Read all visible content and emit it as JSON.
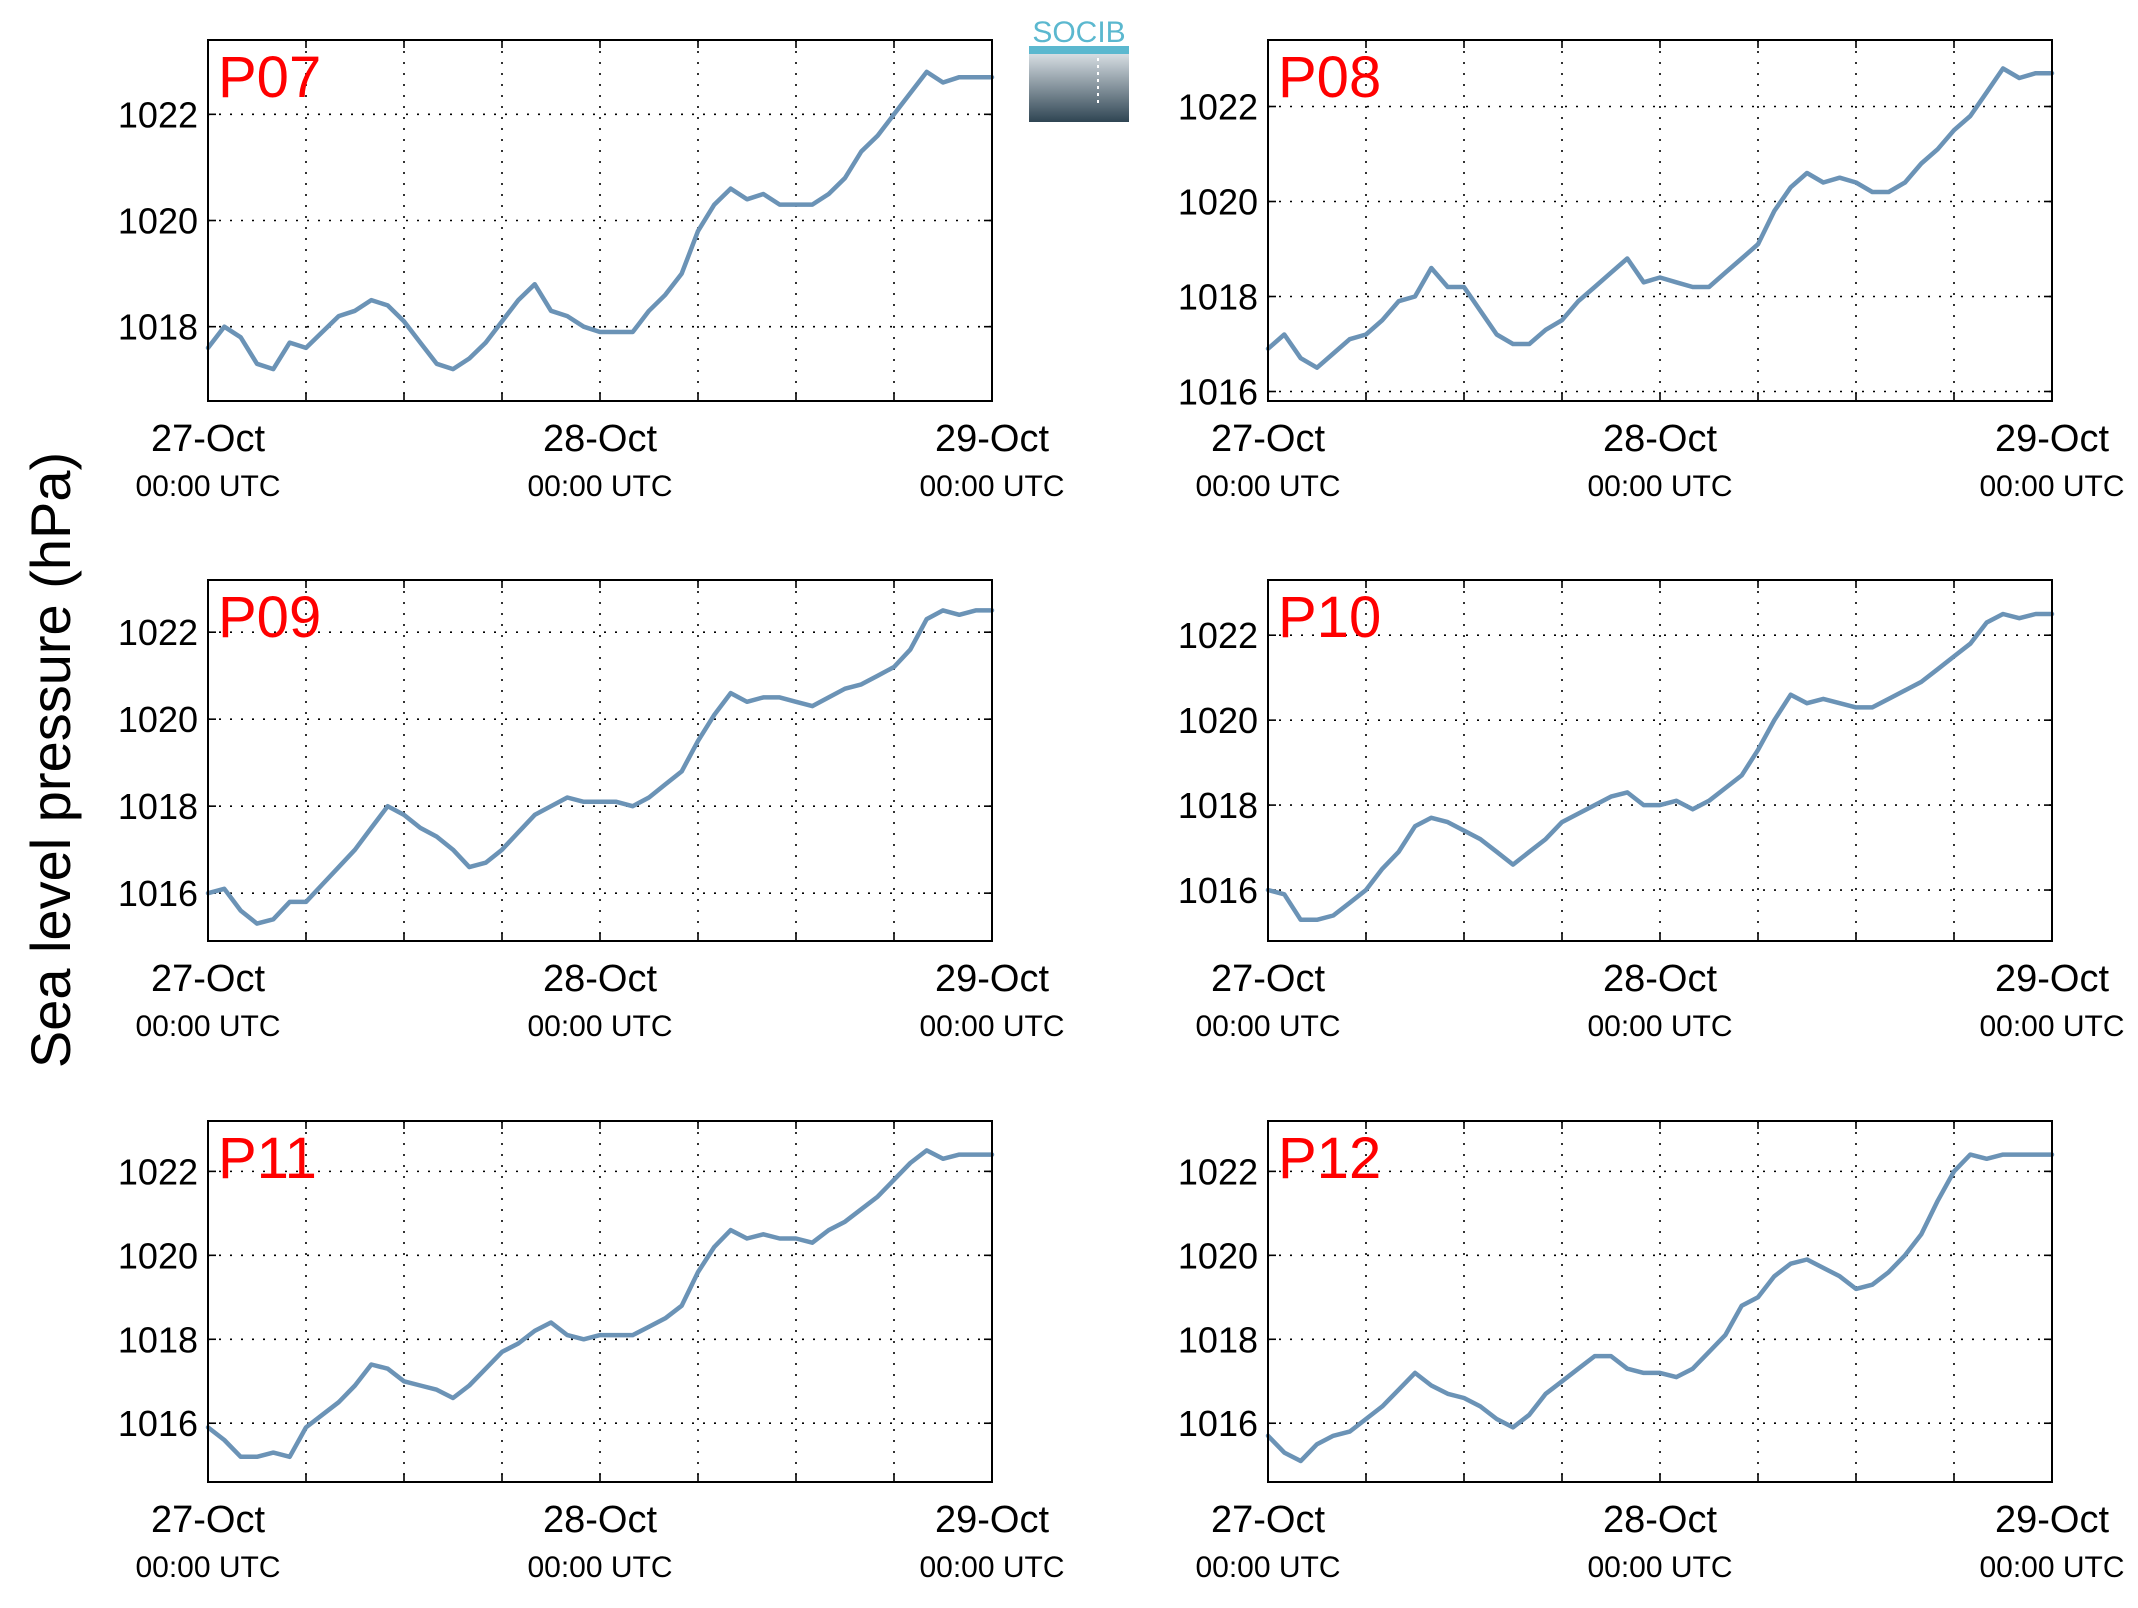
{
  "figure": {
    "ylabel": "Sea level pressure (hPa)",
    "logo_text": "SOCIB",
    "colors": {
      "line": "#6b93b6",
      "title": "#ff0000",
      "logo_text": "#5bb8cf",
      "logo_top": "#d6dde2",
      "logo_bottom": "#2f4553",
      "grid": "#000000"
    }
  },
  "chart_data": [
    {
      "type": "line",
      "title": "P07",
      "xlim": [
        0,
        48
      ],
      "x_ticks": [
        {
          "x": 0,
          "date": "27-Oct",
          "time": "00:00 UTC"
        },
        {
          "x": 24,
          "date": "28-Oct",
          "time": "00:00 UTC"
        },
        {
          "x": 48,
          "date": "29-Oct",
          "time": "00:00 UTC"
        }
      ],
      "x_minor_grid": [
        6,
        12,
        18,
        30,
        36,
        42
      ],
      "ylim": [
        1016.6,
        1023.4
      ],
      "y_ticks": [
        1018,
        1020,
        1022
      ],
      "x": [
        0,
        1,
        2,
        3,
        4,
        5,
        6,
        7,
        8,
        9,
        10,
        11,
        12,
        13,
        14,
        15,
        16,
        17,
        18,
        19,
        20,
        21,
        22,
        23,
        24,
        25,
        26,
        27,
        28,
        29,
        30,
        31,
        32,
        33,
        34,
        35,
        36,
        37,
        38,
        39,
        40,
        41,
        42,
        43,
        44,
        45,
        46,
        47,
        48
      ],
      "values": [
        1017.6,
        1018.0,
        1017.8,
        1017.3,
        1017.2,
        1017.7,
        1017.6,
        1017.9,
        1018.2,
        1018.3,
        1018.5,
        1018.4,
        1018.1,
        1017.7,
        1017.3,
        1017.2,
        1017.4,
        1017.7,
        1018.1,
        1018.5,
        1018.8,
        1018.3,
        1018.2,
        1018.0,
        1017.9,
        1017.9,
        1017.9,
        1018.3,
        1018.6,
        1019.0,
        1019.8,
        1020.3,
        1020.6,
        1020.4,
        1020.5,
        1020.3,
        1020.3,
        1020.3,
        1020.5,
        1020.8,
        1021.3,
        1021.6,
        1022.0,
        1022.4,
        1022.8,
        1022.6,
        1022.7,
        1022.7,
        1022.7
      ]
    },
    {
      "type": "line",
      "title": "P08",
      "xlim": [
        0,
        48
      ],
      "x_ticks": [
        {
          "x": 0,
          "date": "27-Oct",
          "time": "00:00 UTC"
        },
        {
          "x": 24,
          "date": "28-Oct",
          "time": "00:00 UTC"
        },
        {
          "x": 48,
          "date": "29-Oct",
          "time": "00:00 UTC"
        }
      ],
      "x_minor_grid": [
        6,
        12,
        18,
        30,
        36,
        42
      ],
      "ylim": [
        1015.8,
        1023.4
      ],
      "y_ticks": [
        1016,
        1018,
        1020,
        1022
      ],
      "x": [
        0,
        1,
        2,
        3,
        4,
        5,
        6,
        7,
        8,
        9,
        10,
        11,
        12,
        13,
        14,
        15,
        16,
        17,
        18,
        19,
        20,
        21,
        22,
        23,
        24,
        25,
        26,
        27,
        28,
        29,
        30,
        31,
        32,
        33,
        34,
        35,
        36,
        37,
        38,
        39,
        40,
        41,
        42,
        43,
        44,
        45,
        46,
        47,
        48
      ],
      "values": [
        1016.9,
        1017.2,
        1016.7,
        1016.5,
        1016.8,
        1017.1,
        1017.2,
        1017.5,
        1017.9,
        1018.0,
        1018.6,
        1018.2,
        1018.2,
        1017.7,
        1017.2,
        1017.0,
        1017.0,
        1017.3,
        1017.5,
        1017.9,
        1018.2,
        1018.5,
        1018.8,
        1018.3,
        1018.4,
        1018.3,
        1018.2,
        1018.2,
        1018.5,
        1018.8,
        1019.1,
        1019.8,
        1020.3,
        1020.6,
        1020.4,
        1020.5,
        1020.4,
        1020.2,
        1020.2,
        1020.4,
        1020.8,
        1021.1,
        1021.5,
        1021.8,
        1022.3,
        1022.8,
        1022.6,
        1022.7,
        1022.7
      ]
    },
    {
      "type": "line",
      "title": "P09",
      "xlim": [
        0,
        48
      ],
      "x_ticks": [
        {
          "x": 0,
          "date": "27-Oct",
          "time": "00:00 UTC"
        },
        {
          "x": 24,
          "date": "28-Oct",
          "time": "00:00 UTC"
        },
        {
          "x": 48,
          "date": "29-Oct",
          "time": "00:00 UTC"
        }
      ],
      "x_minor_grid": [
        6,
        12,
        18,
        30,
        36,
        42
      ],
      "ylim": [
        1014.9,
        1023.2
      ],
      "y_ticks": [
        1016,
        1018,
        1020,
        1022
      ],
      "x": [
        0,
        1,
        2,
        3,
        4,
        5,
        6,
        7,
        8,
        9,
        10,
        11,
        12,
        13,
        14,
        15,
        16,
        17,
        18,
        19,
        20,
        21,
        22,
        23,
        24,
        25,
        26,
        27,
        28,
        29,
        30,
        31,
        32,
        33,
        34,
        35,
        36,
        37,
        38,
        39,
        40,
        41,
        42,
        43,
        44,
        45,
        46,
        47,
        48
      ],
      "values": [
        1016.0,
        1016.1,
        1015.6,
        1015.3,
        1015.4,
        1015.8,
        1015.8,
        1016.2,
        1016.6,
        1017.0,
        1017.5,
        1018.0,
        1017.8,
        1017.5,
        1017.3,
        1017.0,
        1016.6,
        1016.7,
        1017.0,
        1017.4,
        1017.8,
        1018.0,
        1018.2,
        1018.1,
        1018.1,
        1018.1,
        1018.0,
        1018.2,
        1018.5,
        1018.8,
        1019.5,
        1020.1,
        1020.6,
        1020.4,
        1020.5,
        1020.5,
        1020.4,
        1020.3,
        1020.5,
        1020.7,
        1020.8,
        1021.0,
        1021.2,
        1021.6,
        1022.3,
        1022.5,
        1022.4,
        1022.5,
        1022.5
      ]
    },
    {
      "type": "line",
      "title": "P10",
      "xlim": [
        0,
        48
      ],
      "x_ticks": [
        {
          "x": 0,
          "date": "27-Oct",
          "time": "00:00 UTC"
        },
        {
          "x": 24,
          "date": "28-Oct",
          "time": "00:00 UTC"
        },
        {
          "x": 48,
          "date": "29-Oct",
          "time": "00:00 UTC"
        }
      ],
      "x_minor_grid": [
        6,
        12,
        18,
        30,
        36,
        42
      ],
      "ylim": [
        1014.8,
        1023.3
      ],
      "y_ticks": [
        1016,
        1018,
        1020,
        1022
      ],
      "x": [
        0,
        1,
        2,
        3,
        4,
        5,
        6,
        7,
        8,
        9,
        10,
        11,
        12,
        13,
        14,
        15,
        16,
        17,
        18,
        19,
        20,
        21,
        22,
        23,
        24,
        25,
        26,
        27,
        28,
        29,
        30,
        31,
        32,
        33,
        34,
        35,
        36,
        37,
        38,
        39,
        40,
        41,
        42,
        43,
        44,
        45,
        46,
        47,
        48
      ],
      "values": [
        1016.0,
        1015.9,
        1015.3,
        1015.3,
        1015.4,
        1015.7,
        1016.0,
        1016.5,
        1016.9,
        1017.5,
        1017.7,
        1017.6,
        1017.4,
        1017.2,
        1016.9,
        1016.6,
        1016.9,
        1017.2,
        1017.6,
        1017.8,
        1018.0,
        1018.2,
        1018.3,
        1018.0,
        1018.0,
        1018.1,
        1017.9,
        1018.1,
        1018.4,
        1018.7,
        1019.3,
        1020.0,
        1020.6,
        1020.4,
        1020.5,
        1020.4,
        1020.3,
        1020.3,
        1020.5,
        1020.7,
        1020.9,
        1021.2,
        1021.5,
        1021.8,
        1022.3,
        1022.5,
        1022.4,
        1022.5,
        1022.5
      ]
    },
    {
      "type": "line",
      "title": "P11",
      "xlim": [
        0,
        48
      ],
      "x_ticks": [
        {
          "x": 0,
          "date": "27-Oct",
          "time": "00:00 UTC"
        },
        {
          "x": 24,
          "date": "28-Oct",
          "time": "00:00 UTC"
        },
        {
          "x": 48,
          "date": "29-Oct",
          "time": "00:00 UTC"
        }
      ],
      "x_minor_grid": [
        6,
        12,
        18,
        30,
        36,
        42
      ],
      "ylim": [
        1014.6,
        1023.2
      ],
      "y_ticks": [
        1016,
        1018,
        1020,
        1022
      ],
      "x": [
        0,
        1,
        2,
        3,
        4,
        5,
        6,
        7,
        8,
        9,
        10,
        11,
        12,
        13,
        14,
        15,
        16,
        17,
        18,
        19,
        20,
        21,
        22,
        23,
        24,
        25,
        26,
        27,
        28,
        29,
        30,
        31,
        32,
        33,
        34,
        35,
        36,
        37,
        38,
        39,
        40,
        41,
        42,
        43,
        44,
        45,
        46,
        47,
        48
      ],
      "values": [
        1015.9,
        1015.6,
        1015.2,
        1015.2,
        1015.3,
        1015.2,
        1015.9,
        1016.2,
        1016.5,
        1016.9,
        1017.4,
        1017.3,
        1017.0,
        1016.9,
        1016.8,
        1016.6,
        1016.9,
        1017.3,
        1017.7,
        1017.9,
        1018.2,
        1018.4,
        1018.1,
        1018.0,
        1018.1,
        1018.1,
        1018.1,
        1018.3,
        1018.5,
        1018.8,
        1019.6,
        1020.2,
        1020.6,
        1020.4,
        1020.5,
        1020.4,
        1020.4,
        1020.3,
        1020.6,
        1020.8,
        1021.1,
        1021.4,
        1021.8,
        1022.2,
        1022.5,
        1022.3,
        1022.4,
        1022.4,
        1022.4
      ]
    },
    {
      "type": "line",
      "title": "P12",
      "xlim": [
        0,
        48
      ],
      "x_ticks": [
        {
          "x": 0,
          "date": "27-Oct",
          "time": "00:00 UTC"
        },
        {
          "x": 24,
          "date": "28-Oct",
          "time": "00:00 UTC"
        },
        {
          "x": 48,
          "date": "29-Oct",
          "time": "00:00 UTC"
        }
      ],
      "x_minor_grid": [
        6,
        12,
        18,
        30,
        36,
        42
      ],
      "ylim": [
        1014.6,
        1023.2
      ],
      "y_ticks": [
        1016,
        1018,
        1020,
        1022
      ],
      "x": [
        0,
        1,
        2,
        3,
        4,
        5,
        6,
        7,
        8,
        9,
        10,
        11,
        12,
        13,
        14,
        15,
        16,
        17,
        18,
        19,
        20,
        21,
        22,
        23,
        24,
        25,
        26,
        27,
        28,
        29,
        30,
        31,
        32,
        33,
        34,
        35,
        36,
        37,
        38,
        39,
        40,
        41,
        42,
        43,
        44,
        45,
        46,
        47,
        48
      ],
      "values": [
        1015.7,
        1015.3,
        1015.1,
        1015.5,
        1015.7,
        1015.8,
        1016.1,
        1016.4,
        1016.8,
        1017.2,
        1016.9,
        1016.7,
        1016.6,
        1016.4,
        1016.1,
        1015.9,
        1016.2,
        1016.7,
        1017.0,
        1017.3,
        1017.6,
        1017.6,
        1017.3,
        1017.2,
        1017.2,
        1017.1,
        1017.3,
        1017.7,
        1018.1,
        1018.8,
        1019.0,
        1019.5,
        1019.8,
        1019.9,
        1019.7,
        1019.5,
        1019.2,
        1019.3,
        1019.6,
        1020.0,
        1020.5,
        1021.3,
        1022.0,
        1022.4,
        1022.3,
        1022.4,
        1022.4,
        1022.4,
        1022.4
      ]
    }
  ]
}
